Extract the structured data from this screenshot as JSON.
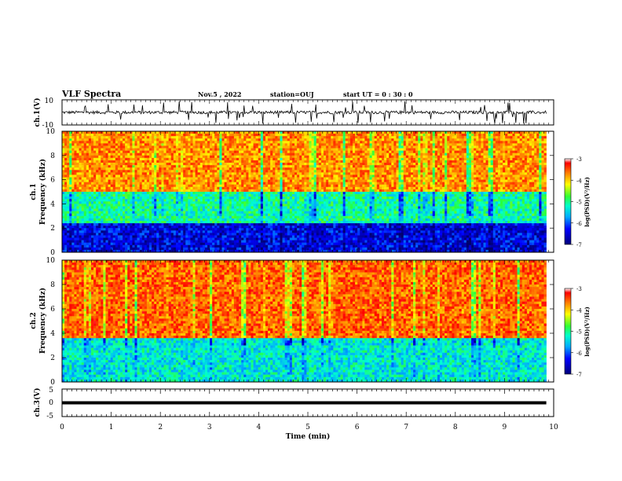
{
  "header": {
    "title": "VLF Spectra",
    "date": "Nov.5 , 2022",
    "station": "station=OUJ",
    "start": "start UT = 0 : 30 : 0"
  },
  "chart_data": [
    {
      "id": "ch1-waveform",
      "type": "line",
      "ylabel": "ch.1(V)",
      "yticks": [
        "10",
        "-10"
      ],
      "ylim": [
        -10,
        10
      ],
      "xlim": [
        0,
        10
      ],
      "description_values": {
        "baseline_v": 0,
        "typical_noise_amplitude_v": 2,
        "spike_amplitude_v": 9,
        "data_end_min": 9.85
      }
    },
    {
      "id": "ch1-spectrogram",
      "type": "heatmap",
      "ylabel": "ch.1\nFrequency (kHz)",
      "ylabel_line1": "ch.1",
      "ylabel_line2": "Frequency (kHz)",
      "yticks": [
        "0",
        "2",
        "4",
        "6",
        "8",
        "10"
      ],
      "ylim": [
        0,
        10
      ],
      "xlim": [
        0,
        10
      ],
      "data_end_min": 9.85,
      "dominant": {
        "0-2.5 kHz": -6.5,
        "2.5-5 kHz": -5.3,
        "5-10 kHz": -4.0
      },
      "colorbar": {
        "label": "log(PSD)(V²/Hz)",
        "ticks": [
          "-3",
          "-4",
          "-5",
          "-6",
          "-7"
        ],
        "range": [
          -7,
          -3
        ]
      }
    },
    {
      "id": "ch2-spectrogram",
      "type": "heatmap",
      "ylabel_line1": "ch.2",
      "ylabel_line2": "Frequency (kHz)",
      "yticks": [
        "0",
        "2",
        "4",
        "6",
        "8",
        "10"
      ],
      "ylim": [
        0,
        10
      ],
      "xlim": [
        0,
        10
      ],
      "data_end_min": 9.85,
      "dominant": {
        "0-3.7 kHz": -5.5,
        "3.7-10 kHz": -3.8
      },
      "colorbar": {
        "label": "log(PSD)(V²/Hz)",
        "ticks": [
          "-3",
          "-4",
          "-5",
          "-6",
          "-7"
        ],
        "range": [
          -7,
          -3
        ]
      }
    },
    {
      "id": "ch3-waveform",
      "type": "line",
      "ylabel": "ch.3(V)",
      "yticks": [
        "5",
        "0",
        "-5"
      ],
      "ylim": [
        -5,
        5
      ],
      "xlim": [
        0,
        10
      ],
      "series": [
        {
          "x": [
            0,
            9.85
          ],
          "y": [
            0,
            0
          ]
        }
      ],
      "xlabel": "Time (min)",
      "xticks": [
        "0",
        "1",
        "2",
        "3",
        "4",
        "5",
        "6",
        "7",
        "8",
        "9",
        "10"
      ]
    }
  ]
}
